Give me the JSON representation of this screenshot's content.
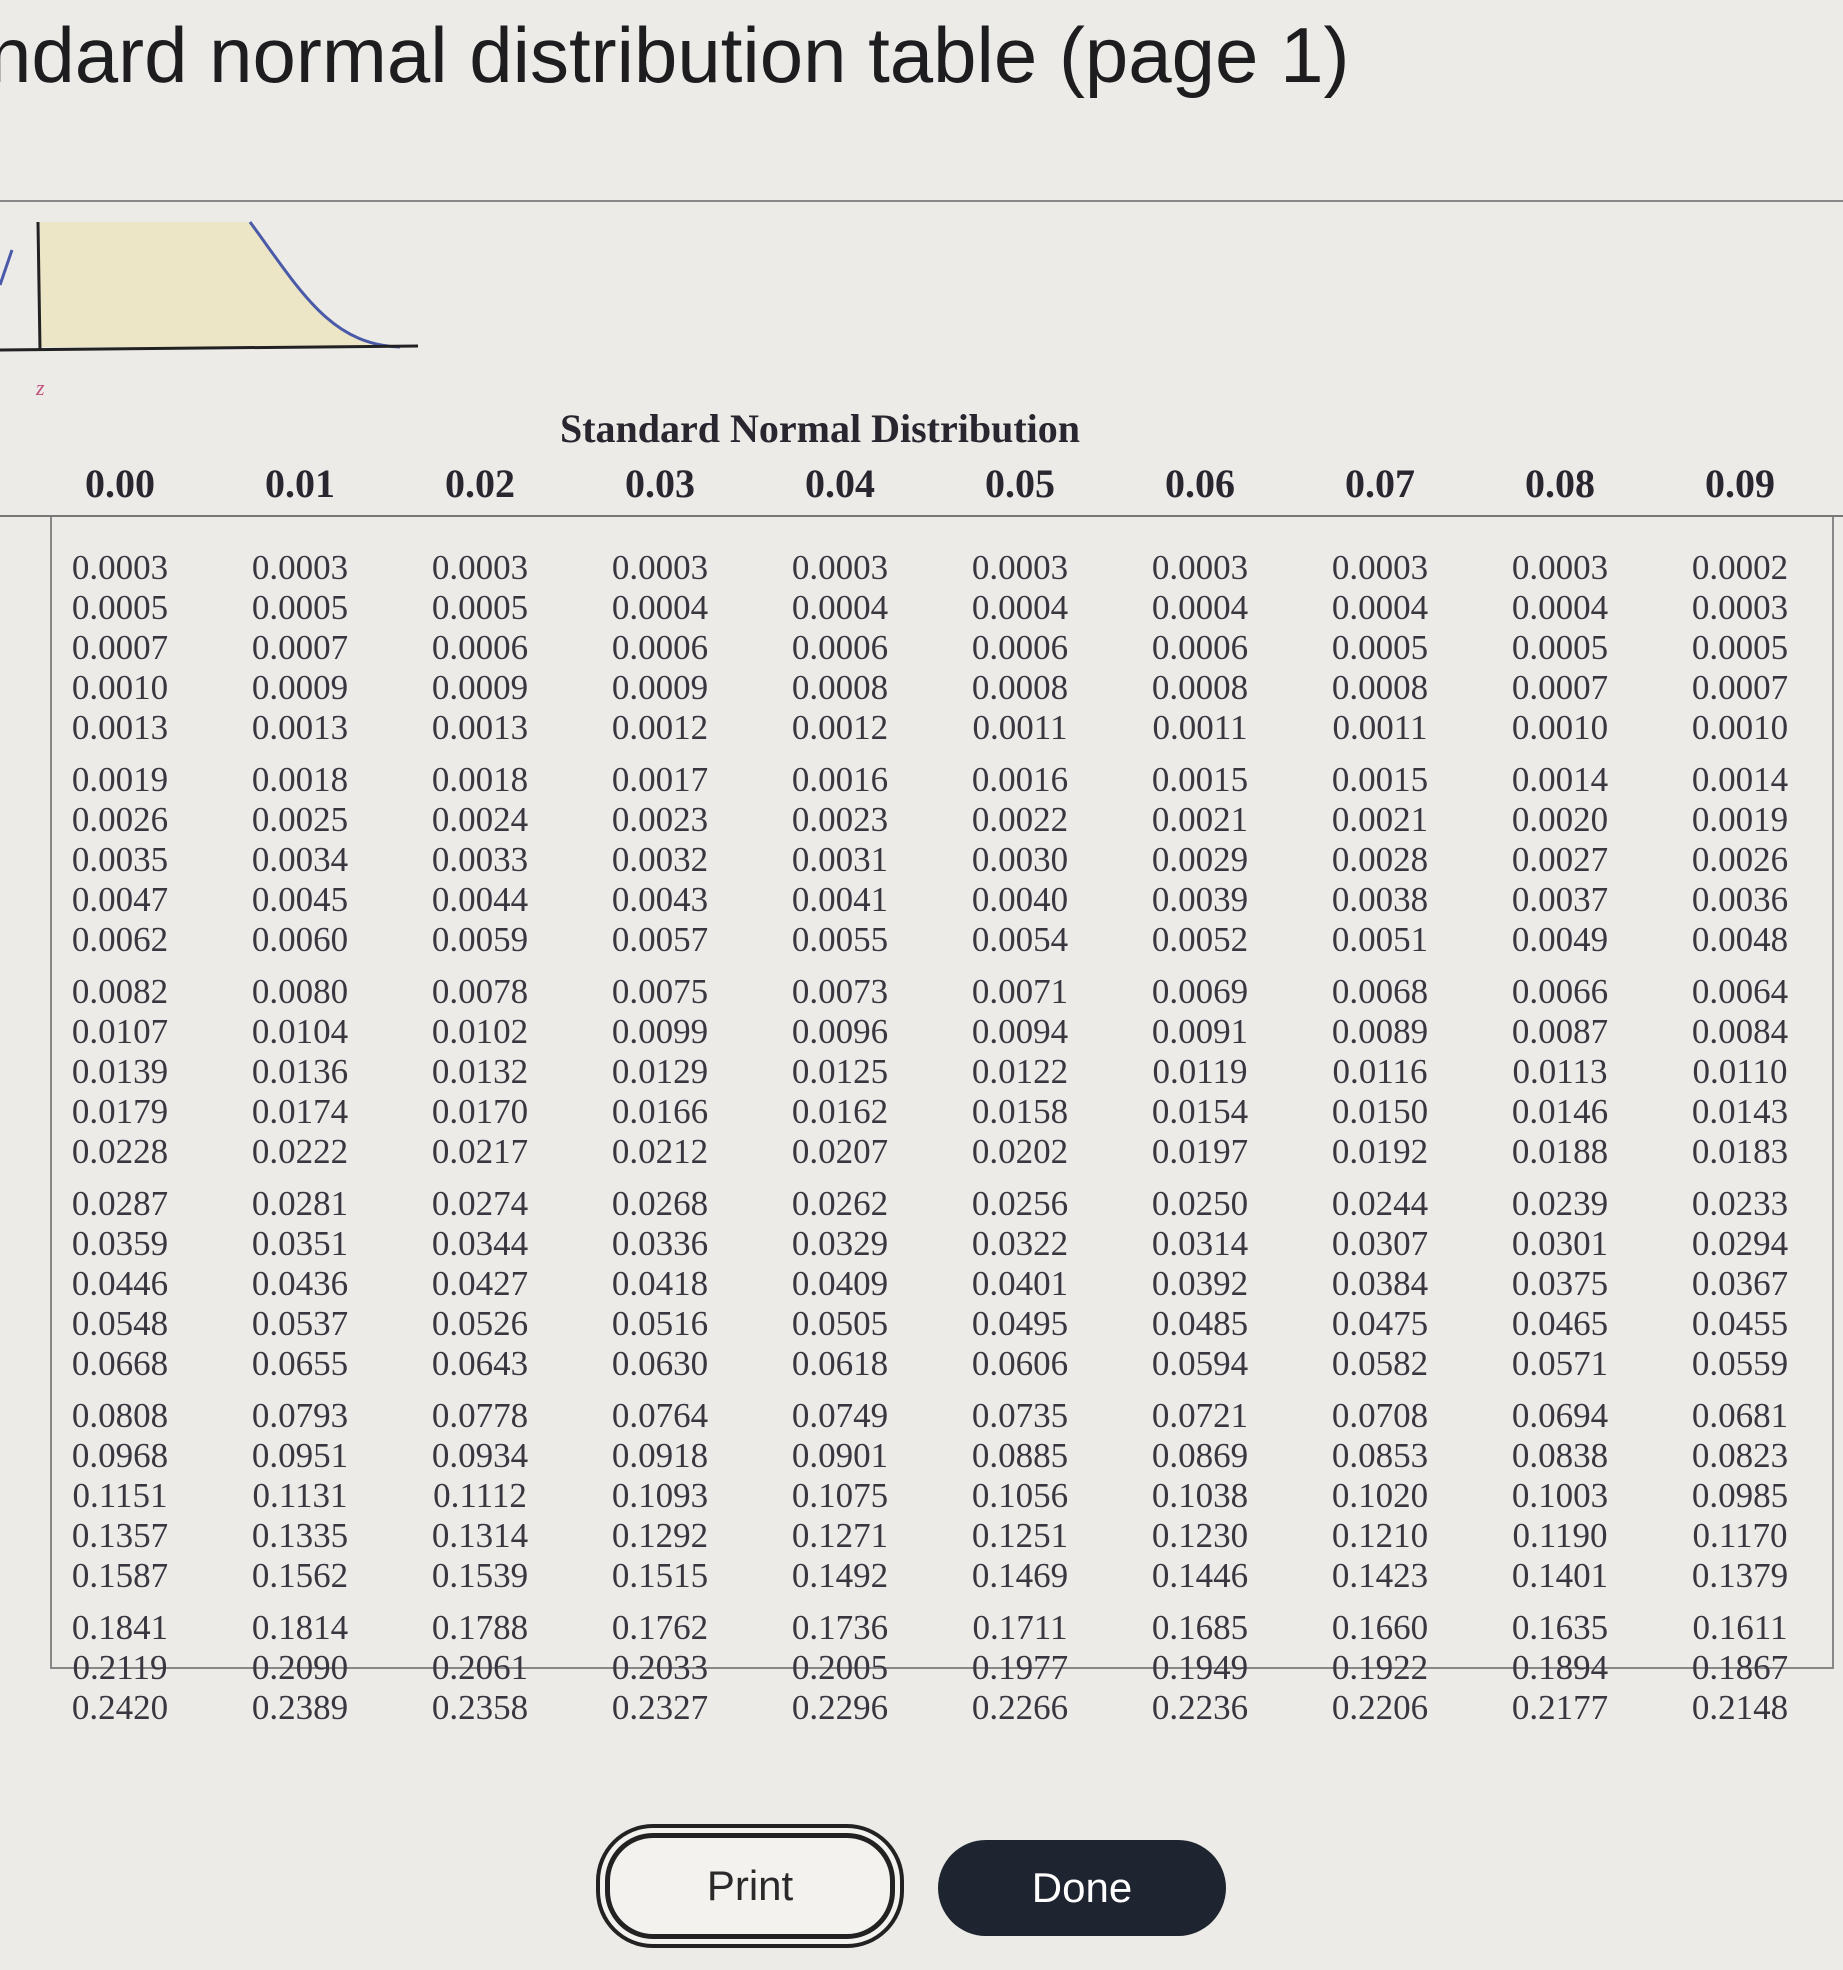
{
  "title": "ndard normal distribution table (page 1)",
  "figure": {
    "z_label": "z",
    "shade_color": "#ece6c6",
    "curve_color": "#4a5aa8"
  },
  "table": {
    "title": "Standard Normal Distribution",
    "columns": [
      "0.00",
      "0.01",
      "0.02",
      "0.03",
      "0.04",
      "0.05",
      "0.06",
      "0.07",
      "0.08",
      "0.09"
    ],
    "rows": [
      [
        "0.0003",
        "0.0003",
        "0.0003",
        "0.0003",
        "0.0003",
        "0.0003",
        "0.0003",
        "0.0003",
        "0.0003",
        "0.0002"
      ],
      [
        "0.0005",
        "0.0005",
        "0.0005",
        "0.0004",
        "0.0004",
        "0.0004",
        "0.0004",
        "0.0004",
        "0.0004",
        "0.0003"
      ],
      [
        "0.0007",
        "0.0007",
        "0.0006",
        "0.0006",
        "0.0006",
        "0.0006",
        "0.0006",
        "0.0005",
        "0.0005",
        "0.0005"
      ],
      [
        "0.0010",
        "0.0009",
        "0.0009",
        "0.0009",
        "0.0008",
        "0.0008",
        "0.0008",
        "0.0008",
        "0.0007",
        "0.0007"
      ],
      [
        "0.0013",
        "0.0013",
        "0.0013",
        "0.0012",
        "0.0012",
        "0.0011",
        "0.0011",
        "0.0011",
        "0.0010",
        "0.0010"
      ],
      [
        "0.0019",
        "0.0018",
        "0.0018",
        "0.0017",
        "0.0016",
        "0.0016",
        "0.0015",
        "0.0015",
        "0.0014",
        "0.0014"
      ],
      [
        "0.0026",
        "0.0025",
        "0.0024",
        "0.0023",
        "0.0023",
        "0.0022",
        "0.0021",
        "0.0021",
        "0.0020",
        "0.0019"
      ],
      [
        "0.0035",
        "0.0034",
        "0.0033",
        "0.0032",
        "0.0031",
        "0.0030",
        "0.0029",
        "0.0028",
        "0.0027",
        "0.0026"
      ],
      [
        "0.0047",
        "0.0045",
        "0.0044",
        "0.0043",
        "0.0041",
        "0.0040",
        "0.0039",
        "0.0038",
        "0.0037",
        "0.0036"
      ],
      [
        "0.0062",
        "0.0060",
        "0.0059",
        "0.0057",
        "0.0055",
        "0.0054",
        "0.0052",
        "0.0051",
        "0.0049",
        "0.0048"
      ],
      [
        "0.0082",
        "0.0080",
        "0.0078",
        "0.0075",
        "0.0073",
        "0.0071",
        "0.0069",
        "0.0068",
        "0.0066",
        "0.0064"
      ],
      [
        "0.0107",
        "0.0104",
        "0.0102",
        "0.0099",
        "0.0096",
        "0.0094",
        "0.0091",
        "0.0089",
        "0.0087",
        "0.0084"
      ],
      [
        "0.0139",
        "0.0136",
        "0.0132",
        "0.0129",
        "0.0125",
        "0.0122",
        "0.0119",
        "0.0116",
        "0.0113",
        "0.0110"
      ],
      [
        "0.0179",
        "0.0174",
        "0.0170",
        "0.0166",
        "0.0162",
        "0.0158",
        "0.0154",
        "0.0150",
        "0.0146",
        "0.0143"
      ],
      [
        "0.0228",
        "0.0222",
        "0.0217",
        "0.0212",
        "0.0207",
        "0.0202",
        "0.0197",
        "0.0192",
        "0.0188",
        "0.0183"
      ],
      [
        "0.0287",
        "0.0281",
        "0.0274",
        "0.0268",
        "0.0262",
        "0.0256",
        "0.0250",
        "0.0244",
        "0.0239",
        "0.0233"
      ],
      [
        "0.0359",
        "0.0351",
        "0.0344",
        "0.0336",
        "0.0329",
        "0.0322",
        "0.0314",
        "0.0307",
        "0.0301",
        "0.0294"
      ],
      [
        "0.0446",
        "0.0436",
        "0.0427",
        "0.0418",
        "0.0409",
        "0.0401",
        "0.0392",
        "0.0384",
        "0.0375",
        "0.0367"
      ],
      [
        "0.0548",
        "0.0537",
        "0.0526",
        "0.0516",
        "0.0505",
        "0.0495",
        "0.0485",
        "0.0475",
        "0.0465",
        "0.0455"
      ],
      [
        "0.0668",
        "0.0655",
        "0.0643",
        "0.0630",
        "0.0618",
        "0.0606",
        "0.0594",
        "0.0582",
        "0.0571",
        "0.0559"
      ],
      [
        "0.0808",
        "0.0793",
        "0.0778",
        "0.0764",
        "0.0749",
        "0.0735",
        "0.0721",
        "0.0708",
        "0.0694",
        "0.0681"
      ],
      [
        "0.0968",
        "0.0951",
        "0.0934",
        "0.0918",
        "0.0901",
        "0.0885",
        "0.0869",
        "0.0853",
        "0.0838",
        "0.0823"
      ],
      [
        "0.1151",
        "0.1131",
        "0.1112",
        "0.1093",
        "0.1075",
        "0.1056",
        "0.1038",
        "0.1020",
        "0.1003",
        "0.0985"
      ],
      [
        "0.1357",
        "0.1335",
        "0.1314",
        "0.1292",
        "0.1271",
        "0.1251",
        "0.1230",
        "0.1210",
        "0.1190",
        "0.1170"
      ],
      [
        "0.1587",
        "0.1562",
        "0.1539",
        "0.1515",
        "0.1492",
        "0.1469",
        "0.1446",
        "0.1423",
        "0.1401",
        "0.1379"
      ],
      [
        "0.1841",
        "0.1814",
        "0.1788",
        "0.1762",
        "0.1736",
        "0.1711",
        "0.1685",
        "0.1660",
        "0.1635",
        "0.1611"
      ],
      [
        "0.2119",
        "0.2090",
        "0.2061",
        "0.2033",
        "0.2005",
        "0.1977",
        "0.1949",
        "0.1922",
        "0.1894",
        "0.1867"
      ],
      [
        "0.2420",
        "0.2389",
        "0.2358",
        "0.2327",
        "0.2296",
        "0.2266",
        "0.2236",
        "0.2206",
        "0.2177",
        "0.2148"
      ]
    ]
  },
  "buttons": {
    "print": "Print",
    "done": "Done"
  }
}
